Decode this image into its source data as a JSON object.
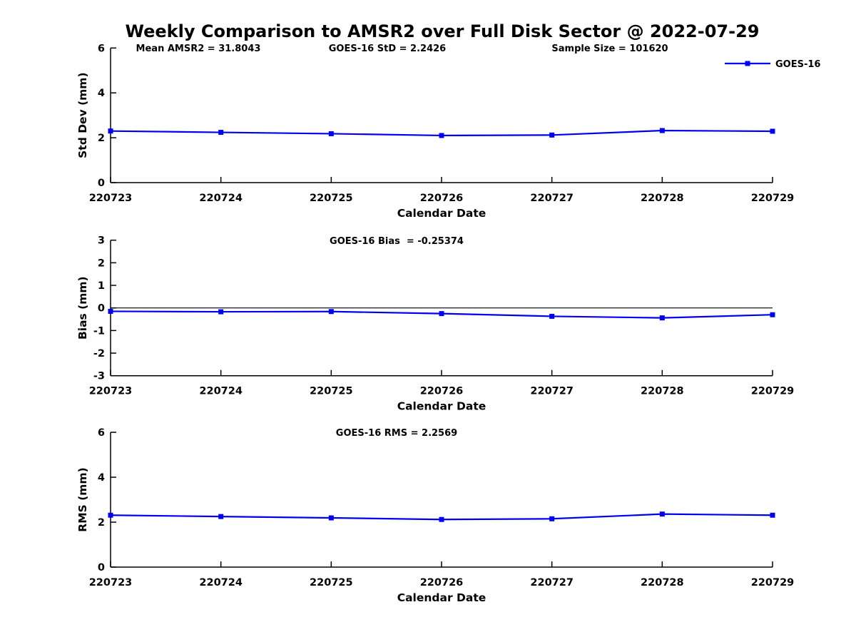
{
  "title": "Weekly Comparison to AMSR2 over Full Disk Sector @ 2022-07-29",
  "legend": {
    "label": "GOES-16"
  },
  "colors": {
    "series": "#0000EE",
    "axis": "#000000",
    "background": "#FFFFFF"
  },
  "stats": {
    "mean_amsr2": 31.8043,
    "goes16_std": 2.2426,
    "sample_size": 101620,
    "goes16_bias": -0.25374,
    "goes16_rms": 2.2569
  },
  "chart_data": {
    "type": "line",
    "series_name": "GOES-16",
    "x_categories": [
      "220723",
      "220724",
      "220725",
      "220726",
      "220727",
      "220728",
      "220729"
    ],
    "xlabel": "Calendar Date",
    "legend_position": "top-right",
    "grid": false,
    "subplots": [
      {
        "ylabel": "Std Dev (mm)",
        "ylim": [
          0,
          6
        ],
        "yticks": [
          0,
          2,
          4,
          6
        ],
        "zero_line": false,
        "annotations": [
          "Mean AMSR2 = 31.8043",
          "GOES-16 StD = 2.2426",
          "Sample Size = 101620"
        ],
        "values": [
          2.3,
          2.24,
          2.18,
          2.1,
          2.12,
          2.32,
          2.29
        ]
      },
      {
        "ylabel": "Bias (mm)",
        "ylim": [
          -3,
          3
        ],
        "yticks": [
          3,
          2,
          1,
          0,
          -1,
          -2,
          -3
        ],
        "zero_line": true,
        "annotations": [
          "GOES-16 Bias  = -0.25374"
        ],
        "values": [
          -0.15,
          -0.17,
          -0.16,
          -0.25,
          -0.37,
          -0.44,
          -0.3
        ]
      },
      {
        "ylabel": "RMS (mm)",
        "ylim": [
          0,
          6
        ],
        "yticks": [
          0,
          2,
          4,
          6
        ],
        "zero_line": false,
        "annotations": [
          "GOES-16 RMS = 2.2569"
        ],
        "values": [
          2.31,
          2.25,
          2.19,
          2.12,
          2.15,
          2.36,
          2.31
        ]
      }
    ]
  }
}
